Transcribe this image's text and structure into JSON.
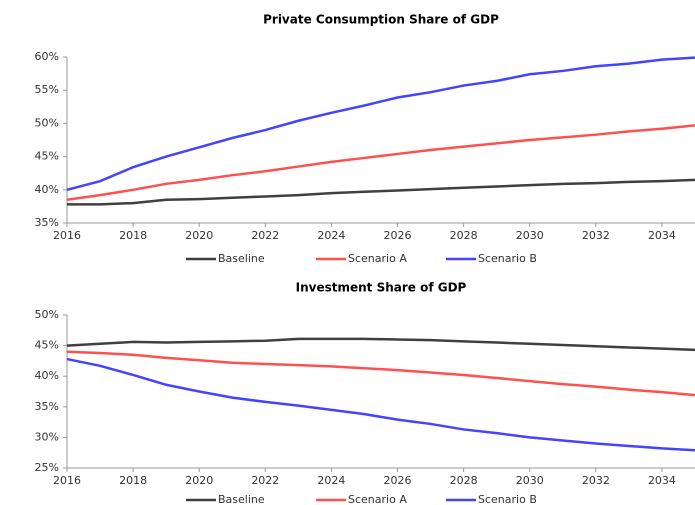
{
  "chart_data": [
    {
      "type": "line",
      "title": "Private Consumption Share of GDP",
      "x": [
        2016,
        2017,
        2018,
        2019,
        2020,
        2021,
        2022,
        2023,
        2024,
        2025,
        2026,
        2027,
        2028,
        2029,
        2030,
        2031,
        2032,
        2033,
        2034,
        2035
      ],
      "xlim": [
        2016,
        2035
      ],
      "xticks": [
        2016,
        2018,
        2020,
        2022,
        2024,
        2026,
        2028,
        2030,
        2032,
        2034
      ],
      "ylim": [
        35,
        60
      ],
      "yticks": [
        {
          "value": 35,
          "label": "35%"
        },
        {
          "value": 40,
          "label": "40%"
        },
        {
          "value": 45,
          "label": "45%"
        },
        {
          "value": 50,
          "label": "50%"
        },
        {
          "value": 55,
          "label": "55%"
        },
        {
          "value": 60,
          "label": "60%"
        }
      ],
      "legend": "bottom",
      "series": [
        {
          "name": "Baseline",
          "color": "#404040",
          "values": [
            37.8,
            37.8,
            38.0,
            38.5,
            38.6,
            38.8,
            39.0,
            39.2,
            39.5,
            39.7,
            39.9,
            40.1,
            40.3,
            40.5,
            40.7,
            40.9,
            41.0,
            41.2,
            41.3,
            41.5
          ]
        },
        {
          "name": "Scenario A",
          "color": "#ff5050",
          "values": [
            38.5,
            39.2,
            40.0,
            40.9,
            41.5,
            42.2,
            42.8,
            43.5,
            44.2,
            44.8,
            45.4,
            46.0,
            46.5,
            47.0,
            47.5,
            47.9,
            48.3,
            48.8,
            49.2,
            49.7
          ]
        },
        {
          "name": "Scenario B",
          "color": "#4444ff",
          "values": [
            40.0,
            41.3,
            43.4,
            45.0,
            46.4,
            47.8,
            49.0,
            50.4,
            51.6,
            52.7,
            53.9,
            54.7,
            55.7,
            56.4,
            57.4,
            57.9,
            58.6,
            59.0,
            59.6,
            59.9
          ]
        }
      ]
    },
    {
      "type": "line",
      "title": "Investment Share of GDP",
      "x": [
        2016,
        2017,
        2018,
        2019,
        2020,
        2021,
        2022,
        2023,
        2024,
        2025,
        2026,
        2027,
        2028,
        2029,
        2030,
        2031,
        2032,
        2033,
        2034,
        2035
      ],
      "xlim": [
        2016,
        2035
      ],
      "xticks": [
        2016,
        2018,
        2020,
        2022,
        2024,
        2026,
        2028,
        2030,
        2032,
        2034
      ],
      "ylim": [
        25,
        50
      ],
      "yticks": [
        {
          "value": 25,
          "label": "25%"
        },
        {
          "value": 30,
          "label": "30%"
        },
        {
          "value": 35,
          "label": "35%"
        },
        {
          "value": 40,
          "label": "40%"
        },
        {
          "value": 45,
          "label": "45%"
        },
        {
          "value": 50,
          "label": "50%"
        }
      ],
      "legend": "bottom",
      "series": [
        {
          "name": "Baseline",
          "color": "#404040",
          "values": [
            45.0,
            45.3,
            45.6,
            45.5,
            45.6,
            45.7,
            45.8,
            46.1,
            46.1,
            46.1,
            46.0,
            45.9,
            45.7,
            45.5,
            45.3,
            45.1,
            44.9,
            44.7,
            44.5,
            44.3
          ]
        },
        {
          "name": "Scenario A",
          "color": "#ff5050",
          "values": [
            44.0,
            43.8,
            43.5,
            43.0,
            42.6,
            42.2,
            42.0,
            41.8,
            41.6,
            41.3,
            41.0,
            40.6,
            40.2,
            39.7,
            39.2,
            38.7,
            38.3,
            37.8,
            37.4,
            36.9
          ]
        },
        {
          "name": "Scenario B",
          "color": "#4444ff",
          "values": [
            42.8,
            41.7,
            40.2,
            38.6,
            37.5,
            36.5,
            35.8,
            35.2,
            34.5,
            33.8,
            32.9,
            32.2,
            31.3,
            30.7,
            30.0,
            29.5,
            29.0,
            28.6,
            28.2,
            27.9
          ]
        }
      ]
    }
  ]
}
